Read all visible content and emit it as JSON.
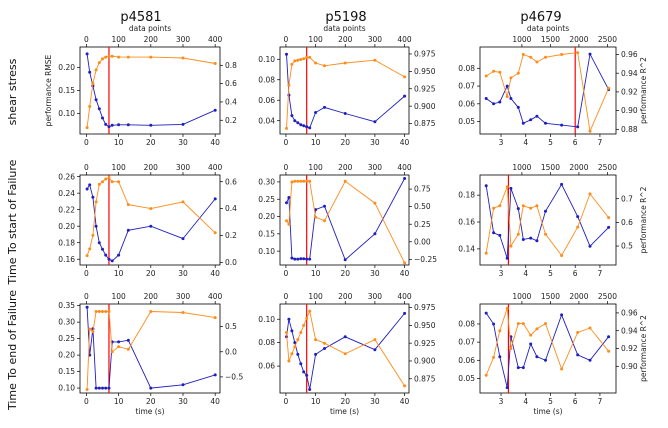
{
  "columns": [
    "p4581",
    "p5198",
    "p4679"
  ],
  "rows": [
    "shear stress",
    "Time To start of Failure",
    "Time To end of Failure"
  ],
  "labels": {
    "top_x": "data points",
    "bottom_x": "time (s)",
    "left_y": "performance RMSE",
    "right_y": "performance R^2"
  },
  "colors": {
    "rmse": "#1f1fbf",
    "r2": "#ff8c1a",
    "marker": "#ff0000"
  },
  "chart_data": [
    {
      "type": "line",
      "row": "shear stress",
      "column": "p4581",
      "xlim": [
        -2,
        41.5
      ],
      "xticks": [
        0,
        10,
        20,
        30,
        40
      ],
      "x2lim": [
        -20,
        415
      ],
      "x2ticks": [
        0,
        100,
        200,
        300,
        400
      ],
      "ylim": [
        0.055,
        0.245
      ],
      "yticks": [
        0.1,
        0.15,
        0.2
      ],
      "y2lim": [
        0.05,
        1.0
      ],
      "y2ticks": [
        0.2,
        0.4,
        0.6,
        0.8
      ],
      "vline": 7,
      "series": [
        {
          "axis": "left",
          "x": [
            0.2,
            1,
            2,
            3,
            4,
            5,
            6,
            7,
            8,
            10,
            13,
            20,
            30,
            40
          ],
          "values": [
            0.23,
            0.19,
            0.16,
            0.13,
            0.11,
            0.09,
            0.076,
            0.071,
            0.074,
            0.075,
            0.075,
            0.074,
            0.076,
            0.107
          ]
        },
        {
          "axis": "right",
          "x": [
            0.2,
            1,
            2,
            3,
            4,
            5,
            6,
            7,
            8,
            10,
            13,
            20,
            30,
            40
          ],
          "values": [
            0.12,
            0.35,
            0.6,
            0.75,
            0.83,
            0.87,
            0.89,
            0.9,
            0.9,
            0.89,
            0.89,
            0.89,
            0.88,
            0.82
          ]
        }
      ]
    },
    {
      "type": "line",
      "row": "shear stress",
      "column": "p5198",
      "xlim": [
        -2,
        41.5
      ],
      "xticks": [
        0,
        10,
        20,
        30,
        40
      ],
      "x2lim": [
        -20,
        415
      ],
      "x2ticks": [
        0,
        100,
        200,
        300,
        400
      ],
      "ylim": [
        0.027,
        0.112
      ],
      "yticks": [
        0.04,
        0.06,
        0.08,
        0.1
      ],
      "y2lim": [
        0.86,
        0.985
      ],
      "y2ticks": [
        0.875,
        0.9,
        0.925,
        0.95,
        0.975
      ],
      "vline": 7,
      "series": [
        {
          "axis": "left",
          "x": [
            0.2,
            1,
            2,
            3,
            4,
            5,
            6,
            7,
            8,
            10,
            13,
            20,
            30,
            40
          ],
          "values": [
            0.105,
            0.065,
            0.045,
            0.04,
            0.038,
            0.036,
            0.035,
            0.034,
            0.033,
            0.048,
            0.053,
            0.047,
            0.039,
            0.064
          ]
        },
        {
          "axis": "right",
          "x": [
            0.2,
            1,
            2,
            3,
            4,
            5,
            6,
            7,
            8,
            10,
            13,
            20,
            30,
            40
          ],
          "values": [
            0.868,
            0.93,
            0.96,
            0.965,
            0.966,
            0.967,
            0.968,
            0.97,
            0.97,
            0.962,
            0.958,
            0.962,
            0.966,
            0.942
          ]
        }
      ]
    },
    {
      "type": "line",
      "row": "shear stress",
      "column": "p4679",
      "xlim": [
        2.15,
        7.65
      ],
      "xticks": [
        3,
        4,
        5,
        6,
        7
      ],
      "x2lim": [
        265,
        2650
      ],
      "x2ticks": [
        1000,
        1500,
        2000,
        2500
      ],
      "ylim": [
        0.043,
        0.092
      ],
      "yticks": [
        0.05,
        0.06,
        0.07,
        0.08
      ],
      "y2lim": [
        0.875,
        0.968
      ],
      "y2ticks": [
        0.88,
        0.9,
        0.92,
        0.94,
        0.96
      ],
      "vline": 6,
      "series": [
        {
          "axis": "left",
          "x": [
            2.4,
            2.7,
            2.95,
            3.25,
            3.4,
            3.7,
            3.9,
            4.2,
            4.45,
            4.8,
            5.45,
            6.1,
            6.6,
            7.35
          ],
          "values": [
            0.063,
            0.06,
            0.061,
            0.07,
            0.063,
            0.058,
            0.049,
            0.051,
            0.053,
            0.049,
            0.048,
            0.047,
            0.088,
            0.068
          ]
        },
        {
          "axis": "right",
          "x": [
            2.4,
            2.7,
            2.95,
            3.25,
            3.4,
            3.7,
            3.9,
            4.2,
            4.45,
            4.8,
            5.45,
            6.1,
            6.6,
            7.35
          ],
          "values": [
            0.937,
            0.942,
            0.941,
            0.915,
            0.935,
            0.94,
            0.96,
            0.957,
            0.952,
            0.957,
            0.96,
            0.962,
            0.878,
            0.924
          ]
        }
      ]
    },
    {
      "type": "line",
      "row": "Time To start of Failure",
      "column": "p4581",
      "xlim": [
        -2,
        41.5
      ],
      "xticks": [
        0,
        10,
        20,
        30,
        40
      ],
      "x2lim": [
        -20,
        415
      ],
      "x2ticks": [
        0,
        100,
        200,
        300,
        400
      ],
      "ylim": [
        0.153,
        0.262
      ],
      "yticks": [
        0.16,
        0.18,
        0.2,
        0.22,
        0.24,
        0.26
      ],
      "y2lim": [
        -0.02,
        0.65
      ],
      "y2ticks": [
        0.0,
        0.2,
        0.4,
        0.6
      ],
      "vline": 7,
      "series": [
        {
          "axis": "left",
          "x": [
            0.2,
            1,
            2,
            3,
            4,
            5,
            6,
            7,
            8,
            10,
            13,
            20,
            30,
            40
          ],
          "values": [
            0.245,
            0.25,
            0.235,
            0.2,
            0.18,
            0.172,
            0.165,
            0.16,
            0.158,
            0.165,
            0.195,
            0.2,
            0.185,
            0.233
          ]
        },
        {
          "axis": "right",
          "x": [
            0.2,
            1,
            2,
            3,
            4,
            5,
            6,
            7,
            8,
            10,
            13,
            20,
            30,
            40
          ],
          "values": [
            0.05,
            0.1,
            0.2,
            0.45,
            0.58,
            0.6,
            0.62,
            0.63,
            0.6,
            0.6,
            0.43,
            0.4,
            0.45,
            0.22
          ]
        }
      ]
    },
    {
      "type": "line",
      "row": "Time To start of Failure",
      "column": "p5198",
      "xlim": [
        -2,
        41.5
      ],
      "xticks": [
        0,
        10,
        20,
        30,
        40
      ],
      "x2lim": [
        -20,
        415
      ],
      "x2ticks": [
        0,
        100,
        200,
        300,
        400
      ],
      "ylim": [
        0.06,
        0.32
      ],
      "yticks": [
        0.1,
        0.15,
        0.2,
        0.25,
        0.3
      ],
      "y2lim": [
        -0.33,
        0.95
      ],
      "y2ticks": [
        -0.25,
        0.0,
        0.25,
        0.5,
        0.75
      ],
      "vline": 7,
      "series": [
        {
          "axis": "left",
          "x": [
            0.2,
            1,
            2,
            3,
            4,
            5,
            6,
            7,
            8,
            10,
            13,
            20,
            30,
            40
          ],
          "values": [
            0.24,
            0.255,
            0.08,
            0.077,
            0.077,
            0.078,
            0.078,
            0.077,
            0.077,
            0.22,
            0.23,
            0.075,
            0.15,
            0.31
          ]
        },
        {
          "axis": "right",
          "x": [
            0.2,
            1,
            2,
            3,
            4,
            5,
            6,
            7,
            8,
            10,
            13,
            20,
            30,
            40
          ],
          "values": [
            0.3,
            0.25,
            0.85,
            0.86,
            0.86,
            0.86,
            0.86,
            0.86,
            0.86,
            0.35,
            0.3,
            0.86,
            0.55,
            -0.3
          ]
        }
      ]
    },
    {
      "type": "line",
      "row": "Time To start of Failure",
      "column": "p4679",
      "xlim": [
        2.15,
        7.65
      ],
      "xticks": [
        3,
        4,
        5,
        6,
        7
      ],
      "x2lim": [
        265,
        2650
      ],
      "x2ticks": [
        1000,
        1500,
        2000,
        2500
      ],
      "ylim": [
        0.128,
        0.195
      ],
      "yticks": [
        0.14,
        0.16,
        0.18
      ],
      "y2lim": [
        0.42,
        0.8
      ],
      "y2ticks": [
        0.5,
        0.6,
        0.7
      ],
      "vline": 3.3,
      "series": [
        {
          "axis": "left",
          "x": [
            2.4,
            2.7,
            2.95,
            3.25,
            3.4,
            3.7,
            3.9,
            4.2,
            4.45,
            4.8,
            5.45,
            6.1,
            6.6,
            7.35
          ],
          "values": [
            0.187,
            0.152,
            0.15,
            0.133,
            0.185,
            0.17,
            0.147,
            0.148,
            0.146,
            0.168,
            0.188,
            0.164,
            0.142,
            0.156
          ]
        },
        {
          "axis": "right",
          "x": [
            2.4,
            2.7,
            2.95,
            3.25,
            3.4,
            3.7,
            3.9,
            4.2,
            4.45,
            4.8,
            5.45,
            6.1,
            6.6,
            7.35
          ],
          "values": [
            0.47,
            0.66,
            0.67,
            0.75,
            0.5,
            0.55,
            0.67,
            0.66,
            0.67,
            0.55,
            0.46,
            0.58,
            0.72,
            0.62
          ]
        }
      ]
    },
    {
      "type": "line",
      "row": "Time To end of Failure",
      "column": "p4581",
      "xlim": [
        -2,
        41.5
      ],
      "xticks": [
        0,
        10,
        20,
        30,
        40
      ],
      "x2lim": [
        -20,
        415
      ],
      "x2ticks": [
        0,
        100,
        200,
        300,
        400
      ],
      "ylim": [
        0.085,
        0.355
      ],
      "yticks": [
        0.1,
        0.15,
        0.2,
        0.25,
        0.3,
        0.35
      ],
      "y2lim": [
        -0.82,
        0.95
      ],
      "y2ticks": [
        -0.5,
        0.0,
        0.5
      ],
      "vline": 7,
      "series": [
        {
          "axis": "left",
          "x": [
            0.2,
            1,
            2,
            3,
            4,
            5,
            6,
            7,
            8,
            10,
            13,
            20,
            30,
            40
          ],
          "values": [
            0.345,
            0.2,
            0.28,
            0.1,
            0.1,
            0.1,
            0.1,
            0.1,
            0.24,
            0.24,
            0.245,
            0.1,
            0.11,
            0.14
          ]
        },
        {
          "axis": "right",
          "x": [
            0.2,
            1,
            2,
            3,
            4,
            5,
            6,
            7,
            8,
            10,
            13,
            20,
            30,
            40
          ],
          "values": [
            -0.75,
            0.45,
            0.4,
            0.8,
            0.8,
            0.8,
            0.8,
            0.8,
            0.0,
            0.1,
            0.05,
            0.8,
            0.78,
            0.68
          ]
        }
      ]
    },
    {
      "type": "line",
      "row": "Time To end of Failure",
      "column": "p5198",
      "xlim": [
        -2,
        41.5
      ],
      "xticks": [
        0,
        10,
        20,
        30,
        40
      ],
      "x2lim": [
        -20,
        415
      ],
      "x2ticks": [
        0,
        100,
        200,
        300,
        400
      ],
      "ylim": [
        0.037,
        0.113
      ],
      "yticks": [
        0.06,
        0.08,
        0.1
      ],
      "y2lim": [
        0.855,
        0.98
      ],
      "y2ticks": [
        0.875,
        0.9,
        0.925,
        0.95,
        0.975
      ],
      "vline": 7,
      "series": [
        {
          "axis": "left",
          "x": [
            0.2,
            1,
            2,
            3,
            4,
            5,
            6,
            7,
            8,
            10,
            13,
            20,
            30,
            40
          ],
          "values": [
            0.085,
            0.1,
            0.09,
            0.08,
            0.07,
            0.062,
            0.055,
            0.052,
            0.04,
            0.07,
            0.075,
            0.085,
            0.074,
            0.105
          ]
        },
        {
          "axis": "right",
          "x": [
            0.2,
            1,
            2,
            3,
            4,
            5,
            6,
            7,
            8,
            10,
            13,
            20,
            30,
            40
          ],
          "values": [
            0.94,
            0.9,
            0.91,
            0.92,
            0.93,
            0.94,
            0.95,
            0.96,
            0.97,
            0.93,
            0.925,
            0.91,
            0.93,
            0.865
          ]
        }
      ]
    },
    {
      "type": "line",
      "row": "Time To end of Failure",
      "column": "p4679",
      "xlim": [
        2.15,
        7.65
      ],
      "xticks": [
        3,
        4,
        5,
        6,
        7
      ],
      "x2lim": [
        265,
        2650
      ],
      "x2ticks": [
        1000,
        1500,
        2000,
        2500
      ],
      "ylim": [
        0.042,
        0.091
      ],
      "yticks": [
        0.05,
        0.06,
        0.07,
        0.08
      ],
      "y2lim": [
        0.87,
        0.97
      ],
      "y2ticks": [
        0.9,
        0.92,
        0.94,
        0.96
      ],
      "vline": 3.3,
      "series": [
        {
          "axis": "left",
          "x": [
            2.4,
            2.7,
            2.95,
            3.25,
            3.4,
            3.7,
            3.9,
            4.2,
            4.45,
            4.8,
            5.45,
            6.1,
            6.6,
            7.35
          ],
          "values": [
            0.086,
            0.08,
            0.062,
            0.045,
            0.073,
            0.056,
            0.056,
            0.069,
            0.062,
            0.06,
            0.085,
            0.063,
            0.06,
            0.073
          ]
        },
        {
          "axis": "right",
          "x": [
            2.4,
            2.7,
            2.95,
            3.25,
            3.4,
            3.7,
            3.9,
            4.2,
            4.45,
            4.8,
            5.45,
            6.1,
            6.6,
            7.35
          ],
          "values": [
            0.89,
            0.91,
            0.94,
            0.965,
            0.92,
            0.948,
            0.948,
            0.935,
            0.942,
            0.948,
            0.897,
            0.938,
            0.943,
            0.917
          ]
        }
      ]
    }
  ]
}
